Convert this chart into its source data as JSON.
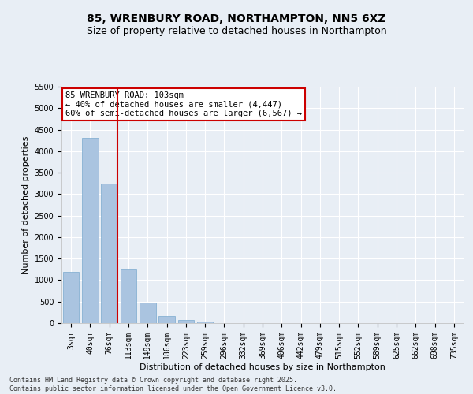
{
  "title": "85, WRENBURY ROAD, NORTHAMPTON, NN5 6XZ",
  "subtitle": "Size of property relative to detached houses in Northampton",
  "xlabel": "Distribution of detached houses by size in Northampton",
  "ylabel": "Number of detached properties",
  "categories": [
    "3sqm",
    "40sqm",
    "76sqm",
    "113sqm",
    "149sqm",
    "186sqm",
    "223sqm",
    "259sqm",
    "296sqm",
    "332sqm",
    "369sqm",
    "406sqm",
    "442sqm",
    "479sqm",
    "515sqm",
    "552sqm",
    "589sqm",
    "625sqm",
    "662sqm",
    "698sqm",
    "735sqm"
  ],
  "values": [
    1200,
    4300,
    3250,
    1250,
    480,
    165,
    80,
    30,
    0,
    0,
    0,
    0,
    0,
    0,
    0,
    0,
    0,
    0,
    0,
    0,
    0
  ],
  "ylim": [
    0,
    5500
  ],
  "yticks": [
    0,
    500,
    1000,
    1500,
    2000,
    2500,
    3000,
    3500,
    4000,
    4500,
    5000,
    5500
  ],
  "bar_color": "#aac4e0",
  "bar_edge_color": "#7aaace",
  "vline_color": "#cc0000",
  "annotation_text": "85 WRENBURY ROAD: 103sqm\n← 40% of detached houses are smaller (4,447)\n60% of semi-detached houses are larger (6,567) →",
  "annotation_box_color": "#cc0000",
  "background_color": "#e8eef5",
  "footer_line1": "Contains HM Land Registry data © Crown copyright and database right 2025.",
  "footer_line2": "Contains public sector information licensed under the Open Government Licence v3.0.",
  "grid_color": "#ffffff",
  "title_fontsize": 10,
  "subtitle_fontsize": 9,
  "axis_label_fontsize": 8,
  "tick_fontsize": 7,
  "annotation_fontsize": 7.5,
  "footer_fontsize": 6
}
